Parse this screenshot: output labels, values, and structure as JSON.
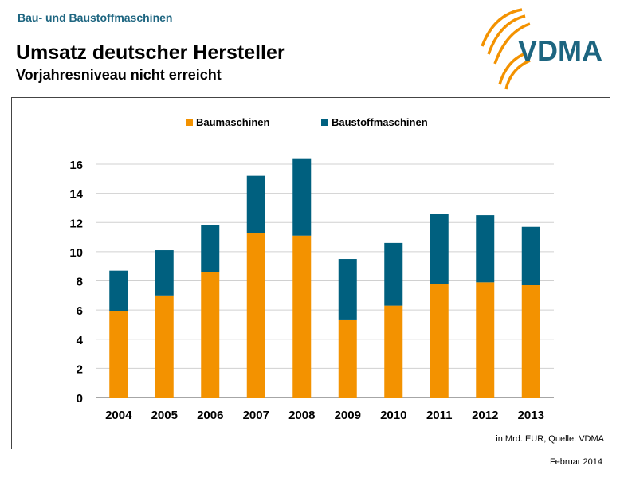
{
  "header": {
    "section": "Bau- und Baustoffmaschinen",
    "title": "Umsatz deutscher Hersteller",
    "subtitle": "Vorjahresniveau nicht erreicht",
    "logo_text": "VDMA"
  },
  "footer": {
    "source": "in Mrd. EUR, Quelle: VDMA",
    "date": "Februar 2014"
  },
  "colors": {
    "Baumaschinen": "#F39200",
    "Baustoffmaschinen": "#00607F",
    "brand": "#1d6580"
  },
  "chart_data": {
    "type": "bar",
    "stacked": true,
    "categories": [
      "2004",
      "2005",
      "2006",
      "2007",
      "2008",
      "2009",
      "2010",
      "2011",
      "2012",
      "2013"
    ],
    "series": [
      {
        "name": "Baumaschinen",
        "values": [
          5.9,
          7.0,
          8.6,
          11.3,
          11.1,
          5.3,
          6.3,
          7.8,
          7.9,
          7.7
        ]
      },
      {
        "name": "Baustoffmaschinen",
        "values": [
          2.8,
          3.1,
          3.2,
          3.9,
          5.3,
          4.2,
          4.3,
          4.8,
          4.6,
          4.0
        ]
      }
    ],
    "ylim": [
      0,
      16
    ],
    "yticks": [
      "0",
      "2",
      "4",
      "6",
      "8",
      "10",
      "12",
      "14",
      "16"
    ],
    "grid": true,
    "legend": "top"
  }
}
